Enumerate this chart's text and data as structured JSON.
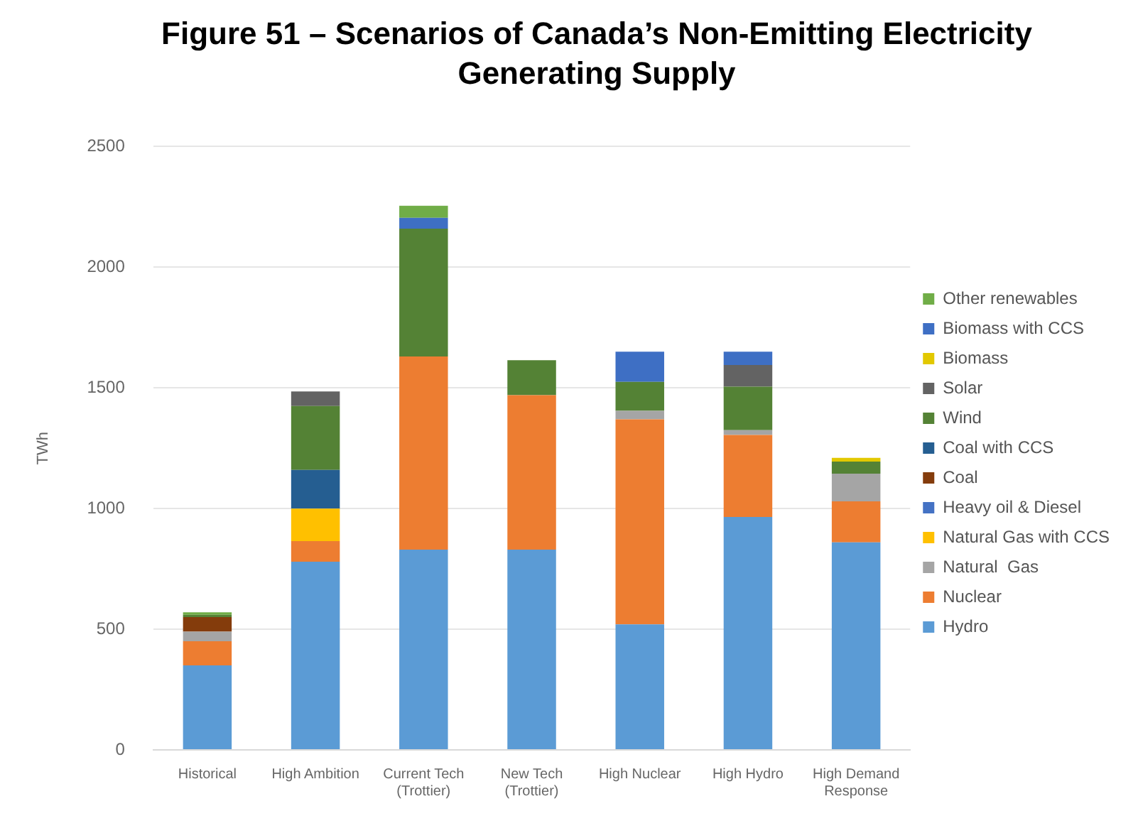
{
  "chart_data": {
    "type": "bar",
    "stacked": true,
    "title": "Figure 51 – Scenarios of Canada’s Non-Emitting Electricity Generating Supply",
    "ylabel": "TWh",
    "categories": [
      "Historical",
      "High Ambition",
      "Current Tech (Trottier)",
      "New Tech (Trottier)",
      "High Nuclear",
      "High Hydro",
      "High Demand Response"
    ],
    "ylim": [
      0,
      2500
    ],
    "yticks": [
      0,
      500,
      1000,
      1500,
      2000,
      2500
    ],
    "grid": "y",
    "legend": "right",
    "series": [
      {
        "name": "Hydro",
        "color": "#5b9bd5",
        "values": [
          350,
          780,
          830,
          830,
          520,
          965,
          860
        ]
      },
      {
        "name": "Nuclear",
        "color": "#ed7d31",
        "values": [
          100,
          85,
          800,
          640,
          850,
          340,
          170
        ]
      },
      {
        "name": "Natural  Gas",
        "color": "#a5a5a5",
        "values": [
          40,
          null,
          null,
          null,
          35,
          20,
          115
        ]
      },
      {
        "name": "Natural Gas with CCS",
        "color": "#ffc000",
        "values": [
          null,
          135,
          null,
          null,
          null,
          null,
          null
        ]
      },
      {
        "name": "Heavy oil & Diesel",
        "color": "#4472c4",
        "values": [
          null,
          null,
          null,
          null,
          null,
          null,
          null
        ]
      },
      {
        "name": "Coal",
        "color": "#843c0c",
        "values": [
          60,
          null,
          null,
          null,
          null,
          null,
          null
        ]
      },
      {
        "name": "Coal with CCS",
        "color": "#255e91",
        "values": [
          null,
          160,
          null,
          null,
          null,
          null,
          null
        ]
      },
      {
        "name": "Wind",
        "color": "#548235",
        "values": [
          10,
          265,
          530,
          145,
          120,
          180,
          50
        ]
      },
      {
        "name": "Solar",
        "color": "#636363",
        "values": [
          null,
          60,
          null,
          null,
          null,
          90,
          null
        ]
      },
      {
        "name": "Biomass",
        "color": "#e2c800",
        "values": [
          null,
          null,
          null,
          null,
          null,
          null,
          15
        ]
      },
      {
        "name": "Biomass with CCS",
        "color": "#3e6fc4",
        "values": [
          null,
          null,
          45,
          null,
          125,
          55,
          null
        ]
      },
      {
        "name": "Other renewables",
        "color": "#70ad47",
        "values": [
          10,
          null,
          50,
          null,
          null,
          null,
          null
        ]
      }
    ]
  }
}
